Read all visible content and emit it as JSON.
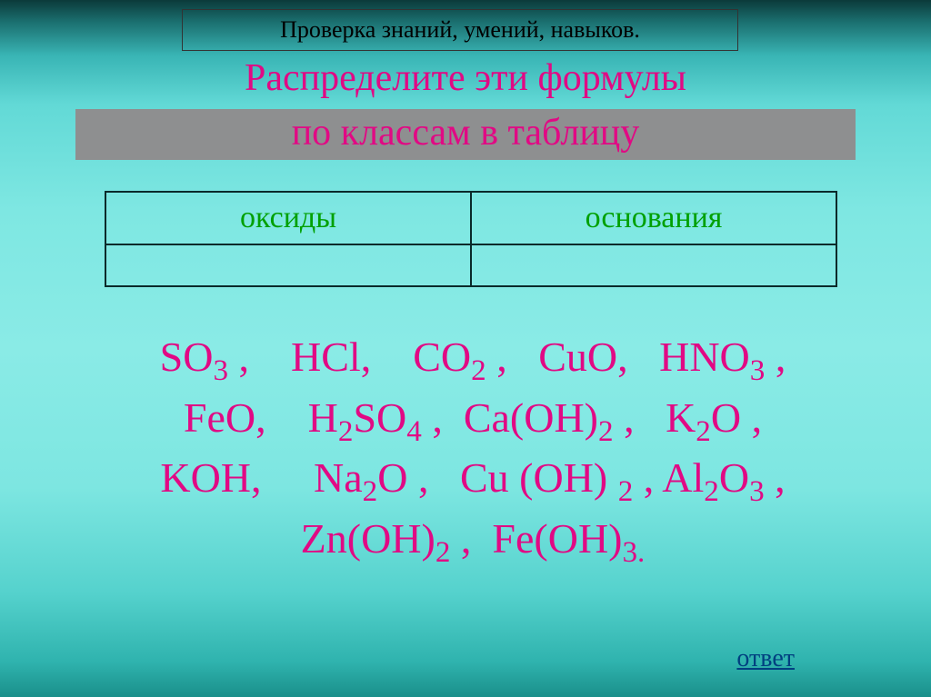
{
  "header": {
    "check_text": "Проверка знаний, умений, навыков."
  },
  "title": {
    "line1": "Распределите эти формулы",
    "line2": "по классам в таблицу"
  },
  "table": {
    "col1": "оксиды",
    "col2": "основания"
  },
  "answer_label": "ответ",
  "formulas_html_parts": {
    "f1": "SO",
    "f1s": "3",
    "f2": "HCl",
    "f3": "CO",
    "f3s": "2",
    "f4": "CuO",
    "f5": "HNO",
    "f5s": "3",
    "f6": "FeO",
    "f7a": "H",
    "f7as": "2",
    "f7b": "SO",
    "f7bs": "4",
    "f8a": "Ca(OH)",
    "f8as": "2",
    "f9a": "K",
    "f9as": "2",
    "f9b": "O",
    "f10": "KOH",
    "f11a": "Na",
    "f11as": "2",
    "f11b": "O",
    "f12a": "Cu (OH) ",
    "f12as": "2",
    "f13a": "Al",
    "f13as": "2",
    "f13b": "O",
    "f13bs": "3",
    "f14a": "Zn(OH)",
    "f14as": "2",
    "f15a": "Fe(OH)",
    "f15as": "3."
  },
  "styling": {
    "slide_width": 1024,
    "slide_height": 767,
    "background_gradient": [
      "#0b3a3a",
      "#1a6d6d",
      "#39b5b5",
      "#62d9d6",
      "#7ee7e2",
      "#8aebe6",
      "#7de6e1",
      "#55d2cd",
      "#2fb3ae",
      "#1a8f8a"
    ],
    "accent_color": "#e10984",
    "table_header_color": "#00a000",
    "table_border_color": "#0a2a2a",
    "gray_band_color": "#8e8f90",
    "link_color": "#004080",
    "title_fontsize": 42,
    "formula_fontsize": 46,
    "header_fontsize": 26,
    "table_header_fontsize": 34,
    "font_family": "Times New Roman"
  }
}
